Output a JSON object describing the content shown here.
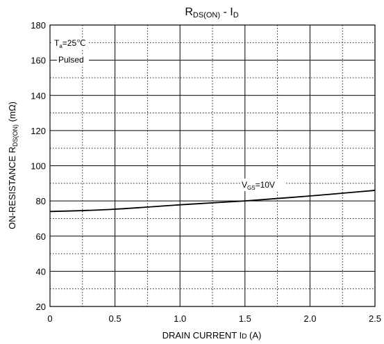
{
  "chart_data": {
    "type": "line",
    "title": {
      "main": "R",
      "sub": "DS(ON)",
      "sep": " - ",
      "main2": "I",
      "sub2": "D"
    },
    "xlabel": {
      "pre": "DRAIN CURRENT I",
      "sub": "D",
      "post": " (A)"
    },
    "ylabel": {
      "pre": "ON-RESISTANCE R",
      "sub": "DS(ON)",
      "post": " (mΩ)"
    },
    "xlim": [
      0,
      2.5
    ],
    "ylim": [
      20,
      180
    ],
    "x_ticks": [
      "0",
      "0.5",
      "1.0",
      "1.5",
      "2.0",
      "2.5"
    ],
    "y_ticks": [
      "20",
      "40",
      "60",
      "80",
      "100",
      "120",
      "140",
      "160",
      "180"
    ],
    "grid": true,
    "annotations": {
      "temp": {
        "pre": "T",
        "sub": "a",
        "post": "=25℃"
      },
      "mode": "Pulsed",
      "vgs": {
        "pre": "V",
        "sub": "GS",
        "post": "=10V"
      }
    },
    "series": [
      {
        "name": "VGS=10V",
        "x": [
          0,
          0.25,
          0.5,
          0.75,
          1.0,
          1.25,
          1.5,
          1.75,
          2.0,
          2.25,
          2.5
        ],
        "y": [
          74,
          74.5,
          75.3,
          76.5,
          77.8,
          78.9,
          80.0,
          81.4,
          82.8,
          84.4,
          86.0
        ]
      }
    ]
  }
}
